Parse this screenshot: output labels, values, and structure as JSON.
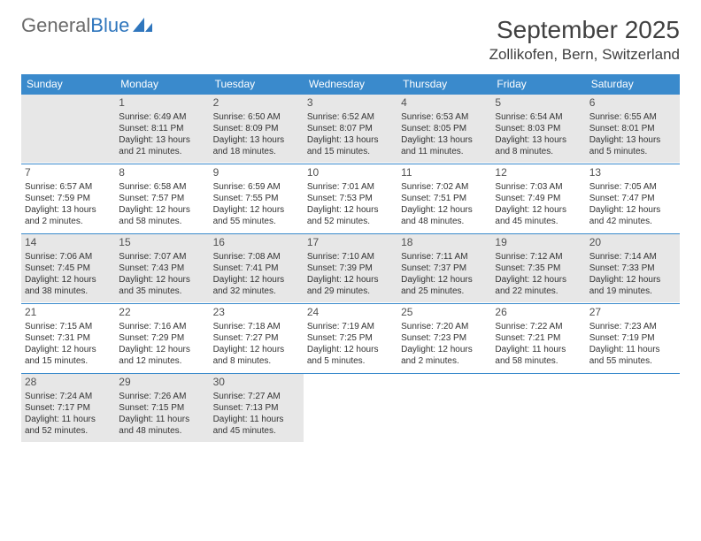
{
  "logo": {
    "text_gray": "General",
    "text_blue": "Blue"
  },
  "title": "September 2025",
  "location": "Zollikofen, Bern, Switzerland",
  "dow": [
    "Sunday",
    "Monday",
    "Tuesday",
    "Wednesday",
    "Thursday",
    "Friday",
    "Saturday"
  ],
  "colors": {
    "header_bg": "#3a8acc",
    "header_fg": "#ffffff",
    "shade": "#e7e7e7",
    "rule": "#3a8acc",
    "text": "#333333"
  },
  "weeks": [
    [
      {
        "blank": true,
        "shaded": true
      },
      {
        "n": "1",
        "shaded": true,
        "sr": "Sunrise: 6:49 AM",
        "ss": "Sunset: 8:11 PM",
        "d1": "Daylight: 13 hours",
        "d2": "and 21 minutes."
      },
      {
        "n": "2",
        "shaded": true,
        "sr": "Sunrise: 6:50 AM",
        "ss": "Sunset: 8:09 PM",
        "d1": "Daylight: 13 hours",
        "d2": "and 18 minutes."
      },
      {
        "n": "3",
        "shaded": true,
        "sr": "Sunrise: 6:52 AM",
        "ss": "Sunset: 8:07 PM",
        "d1": "Daylight: 13 hours",
        "d2": "and 15 minutes."
      },
      {
        "n": "4",
        "shaded": true,
        "sr": "Sunrise: 6:53 AM",
        "ss": "Sunset: 8:05 PM",
        "d1": "Daylight: 13 hours",
        "d2": "and 11 minutes."
      },
      {
        "n": "5",
        "shaded": true,
        "sr": "Sunrise: 6:54 AM",
        "ss": "Sunset: 8:03 PM",
        "d1": "Daylight: 13 hours",
        "d2": "and 8 minutes."
      },
      {
        "n": "6",
        "shaded": true,
        "sr": "Sunrise: 6:55 AM",
        "ss": "Sunset: 8:01 PM",
        "d1": "Daylight: 13 hours",
        "d2": "and 5 minutes."
      }
    ],
    [
      {
        "n": "7",
        "sr": "Sunrise: 6:57 AM",
        "ss": "Sunset: 7:59 PM",
        "d1": "Daylight: 13 hours",
        "d2": "and 2 minutes."
      },
      {
        "n": "8",
        "sr": "Sunrise: 6:58 AM",
        "ss": "Sunset: 7:57 PM",
        "d1": "Daylight: 12 hours",
        "d2": "and 58 minutes."
      },
      {
        "n": "9",
        "sr": "Sunrise: 6:59 AM",
        "ss": "Sunset: 7:55 PM",
        "d1": "Daylight: 12 hours",
        "d2": "and 55 minutes."
      },
      {
        "n": "10",
        "sr": "Sunrise: 7:01 AM",
        "ss": "Sunset: 7:53 PM",
        "d1": "Daylight: 12 hours",
        "d2": "and 52 minutes."
      },
      {
        "n": "11",
        "sr": "Sunrise: 7:02 AM",
        "ss": "Sunset: 7:51 PM",
        "d1": "Daylight: 12 hours",
        "d2": "and 48 minutes."
      },
      {
        "n": "12",
        "sr": "Sunrise: 7:03 AM",
        "ss": "Sunset: 7:49 PM",
        "d1": "Daylight: 12 hours",
        "d2": "and 45 minutes."
      },
      {
        "n": "13",
        "sr": "Sunrise: 7:05 AM",
        "ss": "Sunset: 7:47 PM",
        "d1": "Daylight: 12 hours",
        "d2": "and 42 minutes."
      }
    ],
    [
      {
        "n": "14",
        "shaded": true,
        "sr": "Sunrise: 7:06 AM",
        "ss": "Sunset: 7:45 PM",
        "d1": "Daylight: 12 hours",
        "d2": "and 38 minutes."
      },
      {
        "n": "15",
        "shaded": true,
        "sr": "Sunrise: 7:07 AM",
        "ss": "Sunset: 7:43 PM",
        "d1": "Daylight: 12 hours",
        "d2": "and 35 minutes."
      },
      {
        "n": "16",
        "shaded": true,
        "sr": "Sunrise: 7:08 AM",
        "ss": "Sunset: 7:41 PM",
        "d1": "Daylight: 12 hours",
        "d2": "and 32 minutes."
      },
      {
        "n": "17",
        "shaded": true,
        "sr": "Sunrise: 7:10 AM",
        "ss": "Sunset: 7:39 PM",
        "d1": "Daylight: 12 hours",
        "d2": "and 29 minutes."
      },
      {
        "n": "18",
        "shaded": true,
        "sr": "Sunrise: 7:11 AM",
        "ss": "Sunset: 7:37 PM",
        "d1": "Daylight: 12 hours",
        "d2": "and 25 minutes."
      },
      {
        "n": "19",
        "shaded": true,
        "sr": "Sunrise: 7:12 AM",
        "ss": "Sunset: 7:35 PM",
        "d1": "Daylight: 12 hours",
        "d2": "and 22 minutes."
      },
      {
        "n": "20",
        "shaded": true,
        "sr": "Sunrise: 7:14 AM",
        "ss": "Sunset: 7:33 PM",
        "d1": "Daylight: 12 hours",
        "d2": "and 19 minutes."
      }
    ],
    [
      {
        "n": "21",
        "sr": "Sunrise: 7:15 AM",
        "ss": "Sunset: 7:31 PM",
        "d1": "Daylight: 12 hours",
        "d2": "and 15 minutes."
      },
      {
        "n": "22",
        "sr": "Sunrise: 7:16 AM",
        "ss": "Sunset: 7:29 PM",
        "d1": "Daylight: 12 hours",
        "d2": "and 12 minutes."
      },
      {
        "n": "23",
        "sr": "Sunrise: 7:18 AM",
        "ss": "Sunset: 7:27 PM",
        "d1": "Daylight: 12 hours",
        "d2": "and 8 minutes."
      },
      {
        "n": "24",
        "sr": "Sunrise: 7:19 AM",
        "ss": "Sunset: 7:25 PM",
        "d1": "Daylight: 12 hours",
        "d2": "and 5 minutes."
      },
      {
        "n": "25",
        "sr": "Sunrise: 7:20 AM",
        "ss": "Sunset: 7:23 PM",
        "d1": "Daylight: 12 hours",
        "d2": "and 2 minutes."
      },
      {
        "n": "26",
        "sr": "Sunrise: 7:22 AM",
        "ss": "Sunset: 7:21 PM",
        "d1": "Daylight: 11 hours",
        "d2": "and 58 minutes."
      },
      {
        "n": "27",
        "sr": "Sunrise: 7:23 AM",
        "ss": "Sunset: 7:19 PM",
        "d1": "Daylight: 11 hours",
        "d2": "and 55 minutes."
      }
    ],
    [
      {
        "n": "28",
        "shaded": true,
        "sr": "Sunrise: 7:24 AM",
        "ss": "Sunset: 7:17 PM",
        "d1": "Daylight: 11 hours",
        "d2": "and 52 minutes."
      },
      {
        "n": "29",
        "shaded": true,
        "sr": "Sunrise: 7:26 AM",
        "ss": "Sunset: 7:15 PM",
        "d1": "Daylight: 11 hours",
        "d2": "and 48 minutes."
      },
      {
        "n": "30",
        "shaded": true,
        "sr": "Sunrise: 7:27 AM",
        "ss": "Sunset: 7:13 PM",
        "d1": "Daylight: 11 hours",
        "d2": "and 45 minutes."
      },
      {
        "blank": true
      },
      {
        "blank": true
      },
      {
        "blank": true
      },
      {
        "blank": true
      }
    ]
  ]
}
